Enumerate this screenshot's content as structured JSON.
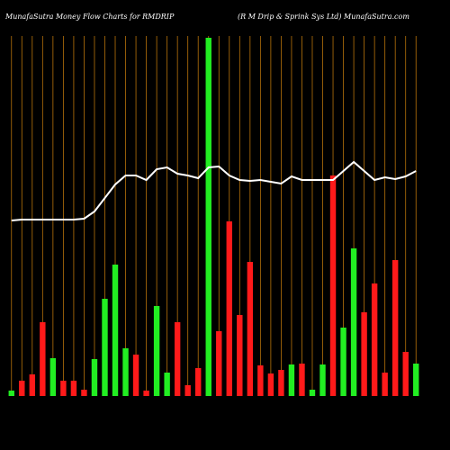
{
  "chart_data": {
    "type": "bar",
    "title": "MunafaSutra  Money Flow  Charts for RMDRIP",
    "subtitle": "(R M Drip & Sprink Sys Ltd) MunafaSutra.com",
    "ylim": [
      0,
      400
    ],
    "grid_color": "#b8730a",
    "line_color": "#ffffff",
    "values": [
      6,
      17,
      24,
      82,
      42,
      17,
      17,
      7,
      41,
      108,
      146,
      53,
      46,
      6,
      100,
      26,
      82,
      12,
      31,
      398,
      72,
      194,
      90,
      149,
      34,
      25,
      29,
      35,
      36,
      7,
      35,
      245,
      76,
      164,
      93,
      125,
      26,
      151,
      49,
      36
    ],
    "colors": [
      "#22ee22",
      "#ff1a1a",
      "#ff1a1a",
      "#ff1a1a",
      "#22ee22",
      "#ff1a1a",
      "#ff1a1a",
      "#ff1a1a",
      "#22ee22",
      "#22ee22",
      "#22ee22",
      "#22ee22",
      "#ff1a1a",
      "#ff1a1a",
      "#22ee22",
      "#22ee22",
      "#ff1a1a",
      "#ff1a1a",
      "#ff1a1a",
      "#22ee22",
      "#ff1a1a",
      "#ff1a1a",
      "#ff1a1a",
      "#ff1a1a",
      "#ff1a1a",
      "#ff1a1a",
      "#ff1a1a",
      "#22ee22",
      "#ff1a1a",
      "#22ee22",
      "#22ee22",
      "#ff1a1a",
      "#22ee22",
      "#22ee22",
      "#ff1a1a",
      "#ff1a1a",
      "#ff1a1a",
      "#ff1a1a",
      "#ff1a1a",
      "#22ee22"
    ],
    "line_values": [
      195,
      196,
      196,
      196,
      196,
      196,
      196,
      197,
      205,
      220,
      235,
      245,
      245,
      240,
      252,
      254,
      247,
      245,
      242,
      254,
      255,
      245,
      240,
      239,
      240,
      238,
      236,
      244,
      240,
      240,
      240,
      240,
      250,
      260,
      250,
      240,
      243,
      241,
      244,
      250
    ]
  }
}
